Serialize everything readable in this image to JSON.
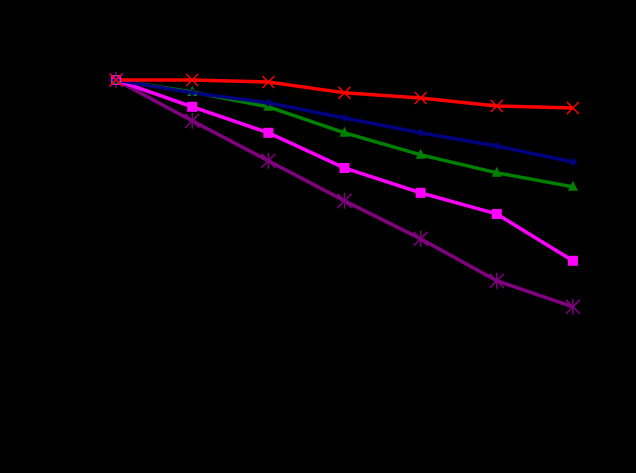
{
  "chart_data": {
    "type": "line",
    "categories": [
      null,
      null,
      null,
      null,
      null,
      null,
      null
    ],
    "ylim": [
      0,
      1
    ],
    "background": "#000000",
    "series": [
      {
        "color": "#800080",
        "marker": "asterisk",
        "values": [
          0.9,
          0.798,
          0.698,
          0.598,
          0.503,
          0.398,
          0.333
        ]
      },
      {
        "color": "#ff00ff",
        "marker": "square",
        "values": [
          0.9,
          0.833,
          0.768,
          0.68,
          0.618,
          0.565,
          0.448
        ]
      },
      {
        "color": "#008000",
        "marker": "triangle",
        "values": [
          0.9,
          0.87,
          0.833,
          0.768,
          0.713,
          0.668,
          0.633
        ]
      },
      {
        "color": "#000080",
        "marker": "diamond",
        "values": [
          0.9,
          0.868,
          0.843,
          0.805,
          0.768,
          0.735,
          0.695
        ]
      },
      {
        "color": "#ff0000",
        "marker": "x",
        "values": [
          0.9,
          0.9,
          0.895,
          0.868,
          0.855,
          0.835,
          0.83
        ]
      }
    ]
  }
}
